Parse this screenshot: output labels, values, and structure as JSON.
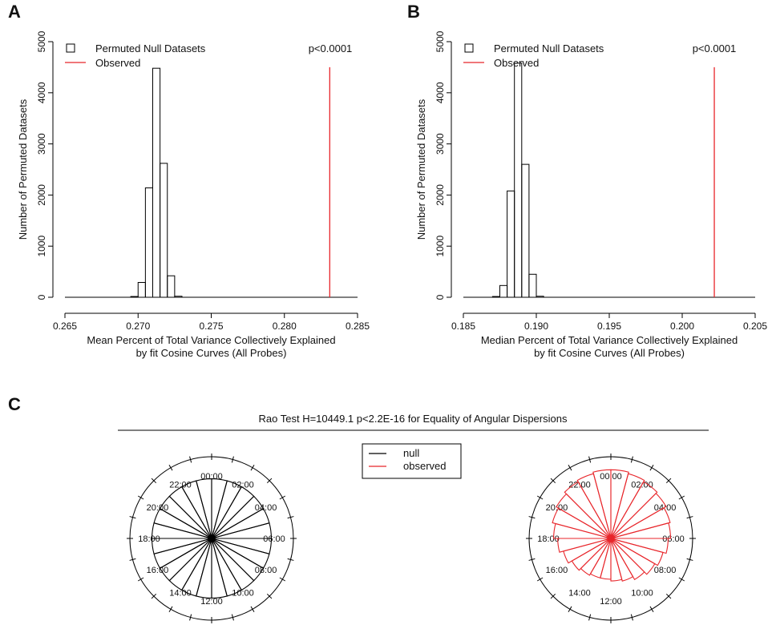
{
  "panels": {
    "A": {
      "letter": "A"
    },
    "B": {
      "letter": "B"
    },
    "C": {
      "letter": "C"
    }
  },
  "chart_data": [
    {
      "type": "bar",
      "panel": "A",
      "ylabel": "Number of Permuted Datasets",
      "xlabel_lines": [
        "Mean Percent of Total Variance Collectively Explained",
        "by fit Cosine Curves (All Probes)"
      ],
      "xlim": [
        0.265,
        0.285
      ],
      "ylim": [
        0,
        5000
      ],
      "x_ticks": [
        0.265,
        0.27,
        0.275,
        0.28,
        0.285
      ],
      "x_tick_labels": [
        "0.265",
        "0.270",
        "0.275",
        "0.280",
        "0.285"
      ],
      "y_ticks": [
        0,
        1000,
        2000,
        3000,
        4000,
        5000
      ],
      "y_tick_labels": [
        "0",
        "1000",
        "2000",
        "3000",
        "4000",
        "5000"
      ],
      "bins": [
        [
          0.2695,
          0.27,
          15
        ],
        [
          0.27,
          0.2705,
          290
        ],
        [
          0.2705,
          0.271,
          2140
        ],
        [
          0.271,
          0.2715,
          4480
        ],
        [
          0.2715,
          0.272,
          2620
        ],
        [
          0.272,
          0.2725,
          420
        ],
        [
          0.2725,
          0.273,
          20
        ]
      ],
      "observed_x": 0.2831,
      "observed_top": 4500,
      "p_text": "p<0.0001",
      "legend": [
        {
          "name": "Permuted Null Datasets",
          "color": "#000000",
          "kind": "box"
        },
        {
          "name": "Observed",
          "color": "#e8262b",
          "kind": "line"
        }
      ],
      "legend_position": "top-left"
    },
    {
      "type": "bar",
      "panel": "B",
      "ylabel": "Number of Permuted Datasets",
      "xlabel_lines": [
        "Median Percent of Total Variance Collectively Explained",
        "by fit Cosine Curves (All Probes)"
      ],
      "xlim": [
        0.185,
        0.205
      ],
      "ylim": [
        0,
        5000
      ],
      "x_ticks": [
        0.185,
        0.19,
        0.195,
        0.2,
        0.205
      ],
      "x_tick_labels": [
        "0.185",
        "0.190",
        "0.195",
        "0.200",
        "0.205"
      ],
      "y_ticks": [
        0,
        1000,
        2000,
        3000,
        4000,
        5000
      ],
      "y_tick_labels": [
        "0",
        "1000",
        "2000",
        "3000",
        "4000",
        "5000"
      ],
      "bins": [
        [
          0.187,
          0.1875,
          15
        ],
        [
          0.1875,
          0.188,
          230
        ],
        [
          0.188,
          0.1885,
          2080
        ],
        [
          0.1885,
          0.189,
          4580
        ],
        [
          0.189,
          0.1895,
          2600
        ],
        [
          0.1895,
          0.19,
          450
        ],
        [
          0.19,
          0.1905,
          20
        ]
      ],
      "observed_x": 0.2022,
      "observed_top": 4500,
      "p_text": "p<0.0001",
      "legend": [
        {
          "name": "Permuted Null Datasets",
          "color": "#000000",
          "kind": "box"
        },
        {
          "name": "Observed",
          "color": "#e8262b",
          "kind": "line"
        }
      ],
      "legend_position": "top-left"
    },
    {
      "type": "rose",
      "panel": "C",
      "title": "Rao Test H=10449.1 p<2.2E-16 for Equality of Angular Dispersions",
      "hour_labels": [
        "00:00",
        "02:00",
        "04:00",
        "06:00",
        "08:00",
        "10:00",
        "12:00",
        "14:00",
        "16:00",
        "18:00",
        "20:00",
        "22:00"
      ],
      "legend": [
        {
          "name": "null",
          "color": "#000000"
        },
        {
          "name": "observed",
          "color": "#e8262b"
        }
      ],
      "sectors": 24,
      "null_radius_fraction": 0.73,
      "observed_radius_fractions": [
        0.84,
        0.82,
        0.8,
        0.78,
        0.75,
        0.73,
        0.7,
        0.66,
        0.62,
        0.58,
        0.54,
        0.52,
        0.5,
        0.5,
        0.52,
        0.55,
        0.6,
        0.65,
        0.7,
        0.74,
        0.77,
        0.8,
        0.82,
        0.84
      ]
    }
  ]
}
